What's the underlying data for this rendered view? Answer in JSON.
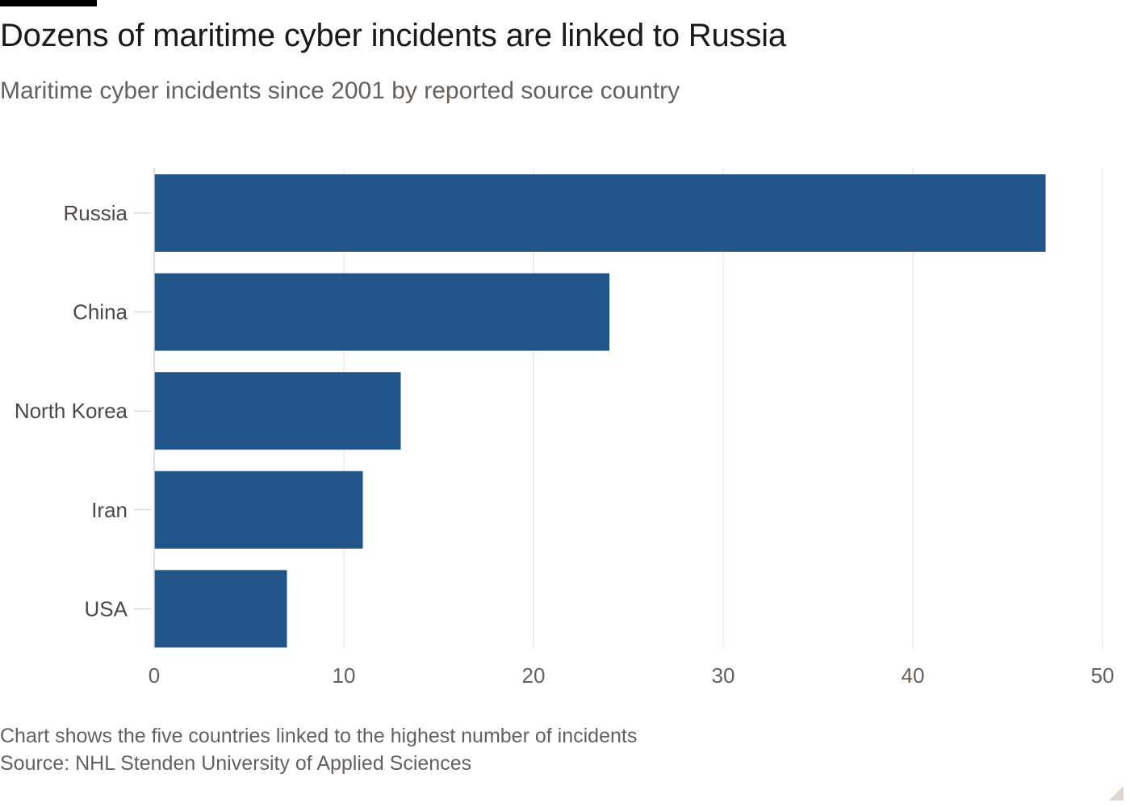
{
  "title": "Dozens of maritime cyber incidents are linked to Russia",
  "subtitle": "Maritime cyber incidents since 2001 by reported source country",
  "note": "Chart shows the five countries linked to the highest number of incidents",
  "source": "Source: NHL Stenden University of Applied Sciences",
  "colors": {
    "bar": "#21558a",
    "grid": "#e6e2de",
    "tick_text": "#66605c",
    "title": "#1a1a1a"
  },
  "chart_data": {
    "type": "bar",
    "orientation": "horizontal",
    "title": "Dozens of maritime cyber incidents are linked to Russia",
    "subtitle": "Maritime cyber incidents since 2001 by reported source country",
    "categories": [
      "Russia",
      "China",
      "North Korea",
      "Iran",
      "USA"
    ],
    "values": [
      47,
      24,
      13,
      11,
      7
    ],
    "xlim": [
      0,
      50
    ],
    "xticks": [
      0,
      10,
      20,
      30,
      40,
      50
    ],
    "xlabel": "",
    "ylabel": "",
    "grid": true
  }
}
